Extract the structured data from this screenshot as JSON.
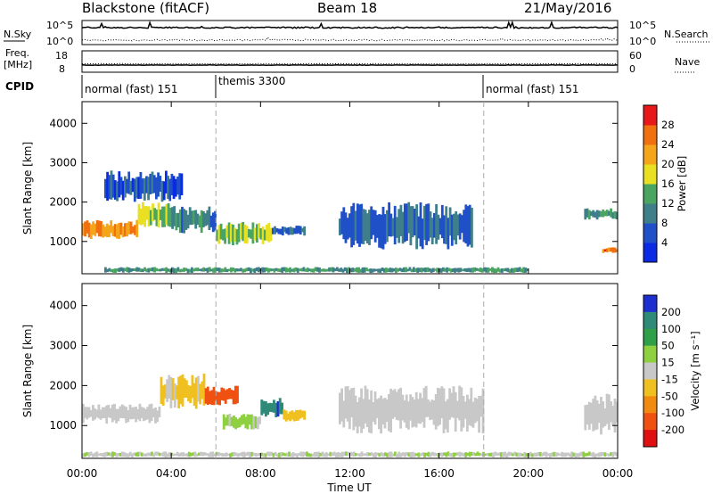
{
  "header": {
    "station": "Blackstone (fitACF)",
    "beam": "Beam 18",
    "date": "21/May/2016"
  },
  "top_panels": {
    "noise_left_label": "N.Sky",
    "noise_right_label": "N.Search",
    "noise_ticks": {
      "upper": "10^5",
      "lower": "10^0"
    },
    "freq_label_1": "Freq.",
    "freq_label_2": "[MHz]",
    "freq_ticks": {
      "upper": "18",
      "lower": "8"
    },
    "nave_label": "Nave",
    "nave_ticks": {
      "upper": "60",
      "lower": "0"
    },
    "cpid_label": "CPID",
    "cpid_segments": [
      {
        "label": "normal (fast) 151",
        "start_hour": 0,
        "end_hour": 6
      },
      {
        "label": "themis 3300",
        "start_hour": 6,
        "end_hour": 18
      },
      {
        "label": "normal (fast) 151",
        "start_hour": 18,
        "end_hour": 24
      }
    ]
  },
  "axes": {
    "x_label": "Time UT",
    "x_ticks": [
      "00:00",
      "04:00",
      "08:00",
      "12:00",
      "16:00",
      "20:00",
      "00:00"
    ],
    "y_label": "Slant Range [km]",
    "y_ticks": [
      "1000",
      "2000",
      "3000",
      "4000"
    ]
  },
  "colorbars": {
    "power": {
      "label": "Power [dB]",
      "ticks": [
        "4",
        "8",
        "12",
        "16",
        "20",
        "24",
        "28"
      ],
      "colors": [
        "#0a2ae6",
        "#2050c8",
        "#3f7f8a",
        "#49a560",
        "#e8e020",
        "#f4a51a",
        "#f07010",
        "#e8181a"
      ]
    },
    "velocity": {
      "label": "Velocity [m s⁻¹]",
      "ticks": [
        "200",
        "100",
        "50",
        "15",
        "-15",
        "-50",
        "-100",
        "-200"
      ],
      "colors": [
        "#1e2fd0",
        "#2f8a78",
        "#2fa048",
        "#8ed040",
        "#c8c8c8",
        "#f0c020",
        "#f08a10",
        "#f05010",
        "#e01010"
      ]
    }
  },
  "chart_data": {
    "type": "heatmap",
    "x_range_hours": [
      0,
      24
    ],
    "y_range_km": [
      180,
      4550
    ],
    "dashed_lines_hours": [
      6,
      18
    ],
    "panels": [
      {
        "name": "power",
        "units": "dB",
        "scale": [
          0,
          32
        ],
        "features": [
          {
            "start": 0.0,
            "end": 2.5,
            "range_km": [
              1050,
              1550
            ],
            "value": 24
          },
          {
            "start": 2.5,
            "end": 4.0,
            "range_km": [
              1350,
              2000
            ],
            "value": 16
          },
          {
            "start": 4.0,
            "end": 6.0,
            "range_km": [
              1200,
              1900
            ],
            "value": 10
          },
          {
            "start": 6.0,
            "end": 8.5,
            "range_km": [
              900,
              1500
            ],
            "value": 16
          },
          {
            "start": 8.5,
            "end": 10.0,
            "range_km": [
              1150,
              1400
            ],
            "value": 8
          },
          {
            "start": 11.5,
            "end": 17.5,
            "range_km": [
              800,
              2000
            ],
            "value": 8
          },
          {
            "start": 22.5,
            "end": 24.0,
            "range_km": [
              1550,
              1850
            ],
            "value": 12
          },
          {
            "start": 23.3,
            "end": 24.0,
            "range_km": [
              700,
              850
            ],
            "value": 26
          },
          {
            "start": 1.0,
            "end": 4.5,
            "range_km": [
              2000,
              2800
            ],
            "value": 6
          },
          {
            "start": 1.0,
            "end": 20.0,
            "range_km": [
              200,
              350
            ],
            "value": 12
          }
        ]
      },
      {
        "name": "velocity",
        "units": "m s^-1",
        "scale": [
          -250,
          250
        ],
        "features": [
          {
            "start": 0.0,
            "end": 3.5,
            "range_km": [
              1050,
              1550
            ],
            "value": 0
          },
          {
            "start": 3.5,
            "end": 5.5,
            "range_km": [
              1400,
              2300
            ],
            "value": -40
          },
          {
            "start": 5.5,
            "end": 7.0,
            "range_km": [
              1500,
              2000
            ],
            "value": -160
          },
          {
            "start": 6.3,
            "end": 8.0,
            "range_km": [
              900,
              1300
            ],
            "value": 40
          },
          {
            "start": 8.0,
            "end": 9.0,
            "range_km": [
              1200,
              1700
            ],
            "value": 180
          },
          {
            "start": 9.0,
            "end": 10.0,
            "range_km": [
              1100,
              1400
            ],
            "value": -60
          },
          {
            "start": 11.5,
            "end": 18.0,
            "range_km": [
              800,
              2000
            ],
            "value": 0
          },
          {
            "start": 22.5,
            "end": 24.0,
            "range_km": [
              700,
              1800
            ],
            "value": 0
          },
          {
            "start": 0.0,
            "end": 24.0,
            "range_km": [
              200,
              350
            ],
            "value": 20
          }
        ]
      }
    ]
  }
}
